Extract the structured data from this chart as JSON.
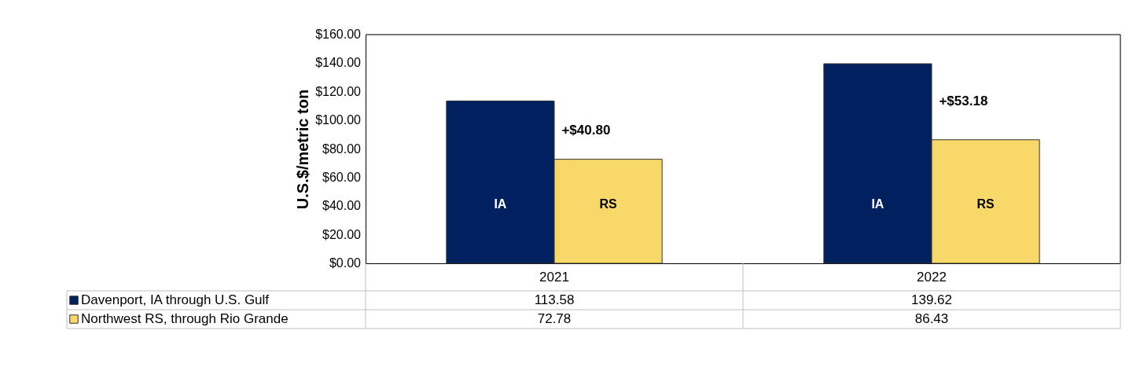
{
  "chart_data": {
    "type": "bar",
    "ylabel": "U.S.$/metric ton",
    "categories": [
      "2021",
      "2022"
    ],
    "series": [
      {
        "name": "Davenport, IA through U.S. Gulf",
        "color": "#002060",
        "values": [
          113.58,
          139.62
        ]
      },
      {
        "name": "Northwest RS, through Rio Grande",
        "color": "#f8d868",
        "values": [
          72.78,
          86.43
        ]
      }
    ],
    "ylim": [
      0,
      160
    ],
    "yticks": [
      {
        "value": 0,
        "label": "$0.00"
      },
      {
        "value": 20,
        "label": "$20.00"
      },
      {
        "value": 40,
        "label": "$40.00"
      },
      {
        "value": 60,
        "label": "$60.00"
      },
      {
        "value": 80,
        "label": "$80.00"
      },
      {
        "value": 100,
        "label": "$100.00"
      },
      {
        "value": 120,
        "label": "$120.00"
      },
      {
        "value": 140,
        "label": "$140.00"
      },
      {
        "value": 160,
        "label": "$160.00"
      }
    ],
    "annotations": [
      "IA",
      "RS",
      {
        "text": "+$40.80",
        "x": "2021",
        "y": 93
      },
      "IA",
      "RS",
      {
        "text": "+$53.18",
        "x": "2022",
        "y": 113
      }
    ],
    "data_labels": true,
    "legend": "bottom left",
    "grid": false
  }
}
